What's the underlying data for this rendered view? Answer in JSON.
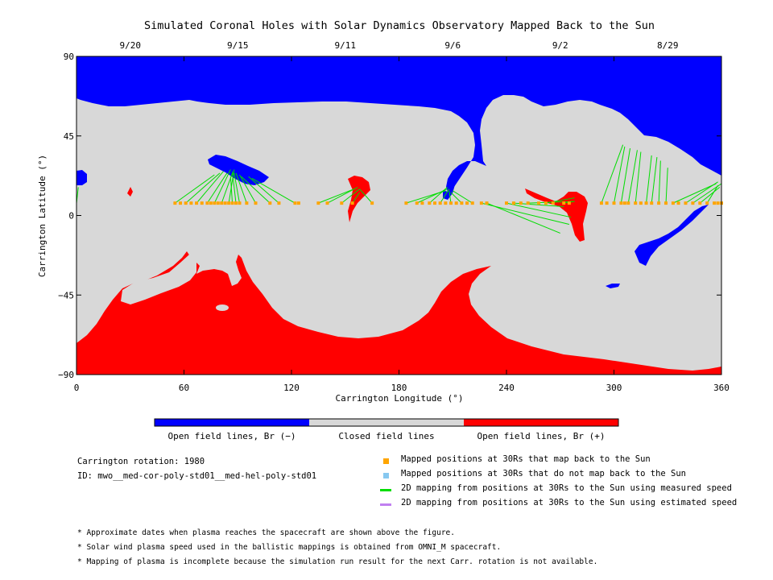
{
  "chart_data": {
    "type": "map",
    "title": "Simulated Coronal Holes with Solar Dynamics Observatory Mapped Back to the Sun",
    "xlabel": "Carrington Longitude (°)",
    "ylabel": "Carrington Latitude (°)",
    "xlim": [
      0,
      360
    ],
    "ylim": [
      -90,
      90
    ],
    "x_ticks": [
      0,
      60,
      120,
      180,
      240,
      300,
      360
    ],
    "y_ticks": [
      -90,
      -45,
      0,
      45,
      90
    ],
    "top_dates": [
      {
        "label": "9/20",
        "lon": 30
      },
      {
        "label": "9/15",
        "lon": 90
      },
      {
        "label": "9/11",
        "lon": 150
      },
      {
        "label": "9/6",
        "lon": 210
      },
      {
        "label": "9/2",
        "lon": 270
      },
      {
        "label": "8/29",
        "lon": 330
      }
    ],
    "colors": {
      "open_negative": "#0000ff",
      "closed": "#d8d8d8",
      "open_positive": "#ff0000",
      "mapped_point": "#ffa500",
      "unmapped_point": "#87c8f0",
      "measured_line": "#00dd00",
      "estimated_line": "#c080f0"
    },
    "colorbar_labels": [
      "Open field lines, Br (−)",
      "Closed field lines",
      "Open field lines, Br (+)"
    ],
    "mapped_positions_lat": 7,
    "mapped_positions_lon": [
      55,
      58,
      61,
      64,
      67,
      70,
      73,
      75,
      77,
      79,
      81,
      83,
      85,
      87,
      89,
      91,
      95,
      100,
      108,
      113,
      122,
      124,
      135,
      140,
      148,
      154,
      165,
      184,
      190,
      193,
      197,
      200,
      203,
      206,
      209,
      212,
      215,
      218,
      221,
      226,
      229,
      240,
      244,
      248,
      252,
      258,
      262,
      266,
      272,
      275,
      293,
      296,
      300,
      304,
      306,
      308,
      312,
      315,
      318,
      321,
      325,
      329,
      333,
      336,
      340,
      344,
      348,
      352,
      356,
      358,
      360
    ],
    "mapping_lines": [
      {
        "from": [
          55,
          7
        ],
        "to": [
          77,
          23
        ]
      },
      {
        "from": [
          61,
          7
        ],
        "to": [
          80,
          24
        ]
      },
      {
        "from": [
          67,
          7
        ],
        "to": [
          82,
          25
        ]
      },
      {
        "from": [
          73,
          7
        ],
        "to": [
          84,
          24
        ]
      },
      {
        "from": [
          77,
          7
        ],
        "to": [
          86,
          26
        ]
      },
      {
        "from": [
          81,
          7
        ],
        "to": [
          87,
          24
        ]
      },
      {
        "from": [
          85,
          7
        ],
        "to": [
          88,
          26
        ]
      },
      {
        "from": [
          87,
          7
        ],
        "to": [
          86,
          22
        ]
      },
      {
        "from": [
          89,
          7
        ],
        "to": [
          87,
          25
        ]
      },
      {
        "from": [
          91,
          7
        ],
        "to": [
          88,
          24
        ]
      },
      {
        "from": [
          95,
          7
        ],
        "to": [
          89,
          24
        ]
      },
      {
        "from": [
          100,
          7
        ],
        "to": [
          91,
          23
        ]
      },
      {
        "from": [
          108,
          7
        ],
        "to": [
          92,
          22
        ]
      },
      {
        "from": [
          113,
          7
        ],
        "to": [
          96,
          22
        ]
      },
      {
        "from": [
          122,
          7
        ],
        "to": [
          98,
          21
        ]
      },
      {
        "from": [
          135,
          7
        ],
        "to": [
          155,
          15
        ]
      },
      {
        "from": [
          140,
          7
        ],
        "to": [
          157,
          16
        ]
      },
      {
        "from": [
          148,
          7
        ],
        "to": [
          158,
          15
        ]
      },
      {
        "from": [
          154,
          7
        ],
        "to": [
          158,
          13
        ]
      },
      {
        "from": [
          165,
          7
        ],
        "to": [
          158,
          15
        ]
      },
      {
        "from": [
          184,
          7
        ],
        "to": [
          206,
          14
        ]
      },
      {
        "from": [
          190,
          7
        ],
        "to": [
          207,
          15
        ]
      },
      {
        "from": [
          197,
          7
        ],
        "to": [
          207,
          16
        ]
      },
      {
        "from": [
          203,
          7
        ],
        "to": [
          208,
          15
        ]
      },
      {
        "from": [
          209,
          7
        ],
        "to": [
          208,
          14
        ]
      },
      {
        "from": [
          215,
          7
        ],
        "to": [
          209,
          13
        ]
      },
      {
        "from": [
          221,
          7
        ],
        "to": [
          210,
          14
        ]
      },
      {
        "from": [
          229,
          7
        ],
        "to": [
          270,
          -10
        ]
      },
      {
        "from": [
          226,
          7
        ],
        "to": [
          275,
          -5
        ]
      },
      {
        "from": [
          240,
          7
        ],
        "to": [
          276,
          -1
        ]
      },
      {
        "from": [
          244,
          7
        ],
        "to": [
          272,
          5
        ]
      },
      {
        "from": [
          252,
          7
        ],
        "to": [
          278,
          8
        ]
      },
      {
        "from": [
          262,
          7
        ],
        "to": [
          278,
          10
        ]
      },
      {
        "from": [
          272,
          7
        ],
        "to": [
          278,
          8
        ]
      },
      {
        "from": [
          293,
          7
        ],
        "to": [
          305,
          40
        ]
      },
      {
        "from": [
          300,
          7
        ],
        "to": [
          306,
          39
        ]
      },
      {
        "from": [
          304,
          7
        ],
        "to": [
          309,
          38
        ]
      },
      {
        "from": [
          308,
          7
        ],
        "to": [
          313,
          37
        ]
      },
      {
        "from": [
          312,
          7
        ],
        "to": [
          315,
          36
        ]
      },
      {
        "from": [
          318,
          7
        ],
        "to": [
          321,
          34
        ]
      },
      {
        "from": [
          321,
          7
        ],
        "to": [
          324,
          33
        ]
      },
      {
        "from": [
          325,
          7
        ],
        "to": [
          326,
          31
        ]
      },
      {
        "from": [
          329,
          7
        ],
        "to": [
          330,
          27
        ]
      },
      {
        "from": [
          333,
          7
        ],
        "to": [
          357,
          18
        ]
      },
      {
        "from": [
          340,
          7
        ],
        "to": [
          358,
          19
        ]
      },
      {
        "from": [
          344,
          7
        ],
        "to": [
          360,
          18
        ]
      },
      {
        "from": [
          348,
          7
        ],
        "to": [
          359,
          16
        ]
      },
      {
        "from": [
          352,
          7
        ],
        "to": [
          358,
          17
        ]
      },
      {
        "from": [
          0,
          7
        ],
        "to": [
          1,
          16
        ]
      }
    ]
  },
  "info": {
    "rotation": "Carrington rotation: 1980",
    "id": "ID: mwo__med-cor-poly-std01__med-hel-poly-std01"
  },
  "legend": [
    {
      "label": "Mapped positions at 30Rs that map back to the Sun",
      "kind": "square",
      "color": "#ffa500"
    },
    {
      "label": "Mapped positions at 30Rs that do not map back to the Sun",
      "kind": "square",
      "color": "#87c8f0"
    },
    {
      "label": "2D mapping from positions at 30Rs to the Sun using measured speed",
      "kind": "line",
      "color": "#00dd00"
    },
    {
      "label": "2D mapping from positions at 30Rs to the Sun using estimated speed",
      "kind": "line",
      "color": "#c080f0"
    }
  ],
  "footnotes": [
    "* Approximate dates when plasma reaches the spacecraft are shown above the figure.",
    "* Solar wind plasma speed used in the ballistic mappings is obtained from OMNI_M spacecraft.",
    "* Mapping of plasma is incomplete because the simulation run result for the next Carr. rotation is not available."
  ]
}
